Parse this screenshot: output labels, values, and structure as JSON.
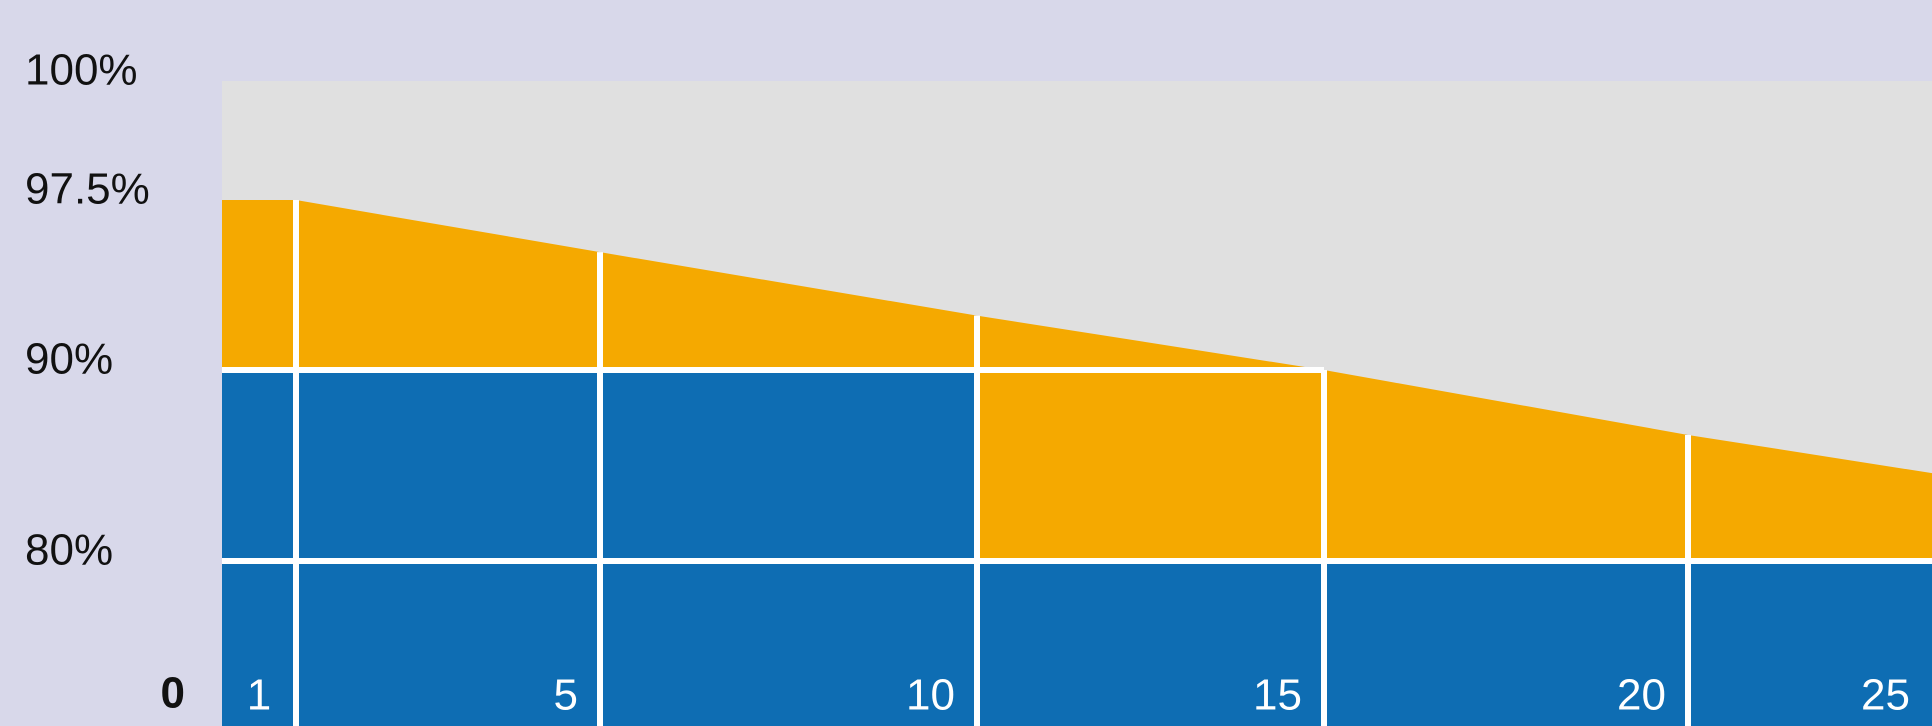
{
  "chart_data": {
    "type": "area",
    "categories": [
      "1",
      "5",
      "10",
      "15",
      "20",
      "25"
    ],
    "series": [
      {
        "color": "#0e6db3",
        "values": [
          90,
          90,
          90,
          80,
          80,
          80
        ]
      },
      {
        "color": "#f5a900",
        "values": [
          97.5,
          95.2,
          92.4,
          90,
          86.6,
          84.6
        ]
      }
    ],
    "ylim": [
      0,
      100
    ],
    "yticks": [
      {
        "value": 100,
        "label": "100%"
      },
      {
        "value": 97.5,
        "label": "97.5%"
      },
      {
        "value": 90,
        "label": "90%"
      },
      {
        "value": 80,
        "label": "80%"
      },
      0
    ],
    "grid": true
  }
}
